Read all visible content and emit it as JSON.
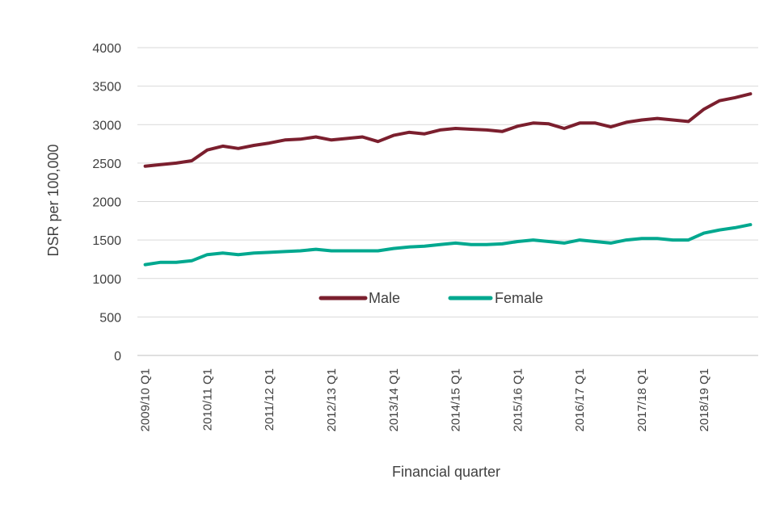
{
  "chart_data": {
    "type": "line",
    "xlabel": "Financial quarter",
    "ylabel": "DSR per 100,000",
    "ylim": [
      0,
      4000
    ],
    "yticks": [
      0,
      500,
      1000,
      1500,
      2000,
      2500,
      3000,
      3500,
      4000
    ],
    "x_tick_labels": [
      "2009/10 Q1",
      "2010/11 Q1",
      "2011/12 Q1",
      "2012/13 Q1",
      "2013/14 Q1",
      "2014/15 Q1",
      "2015/16 Q1",
      "2016/17 Q1",
      "2017/18 Q1",
      "2018/19 Q1"
    ],
    "x_tick_every": 4,
    "n_points": 40,
    "grid": true,
    "legend_position": "center",
    "series": [
      {
        "name": "Male",
        "color": "#7B1F2E",
        "values": [
          2460,
          2480,
          2500,
          2530,
          2670,
          2720,
          2690,
          2730,
          2760,
          2800,
          2810,
          2840,
          2800,
          2820,
          2840,
          2780,
          2860,
          2900,
          2880,
          2930,
          2950,
          2940,
          2930,
          2910,
          2980,
          3020,
          3010,
          2950,
          3020,
          3020,
          2970,
          3030,
          3060,
          3080,
          3060,
          3040,
          3200,
          3310,
          3350,
          3400
        ]
      },
      {
        "name": "Female",
        "color": "#00A88F",
        "values": [
          1180,
          1210,
          1210,
          1230,
          1310,
          1330,
          1310,
          1330,
          1340,
          1350,
          1360,
          1380,
          1360,
          1360,
          1360,
          1360,
          1390,
          1410,
          1420,
          1440,
          1460,
          1440,
          1440,
          1450,
          1480,
          1500,
          1480,
          1460,
          1500,
          1480,
          1460,
          1500,
          1520,
          1520,
          1500,
          1500,
          1590,
          1630,
          1660,
          1700
        ]
      }
    ]
  }
}
